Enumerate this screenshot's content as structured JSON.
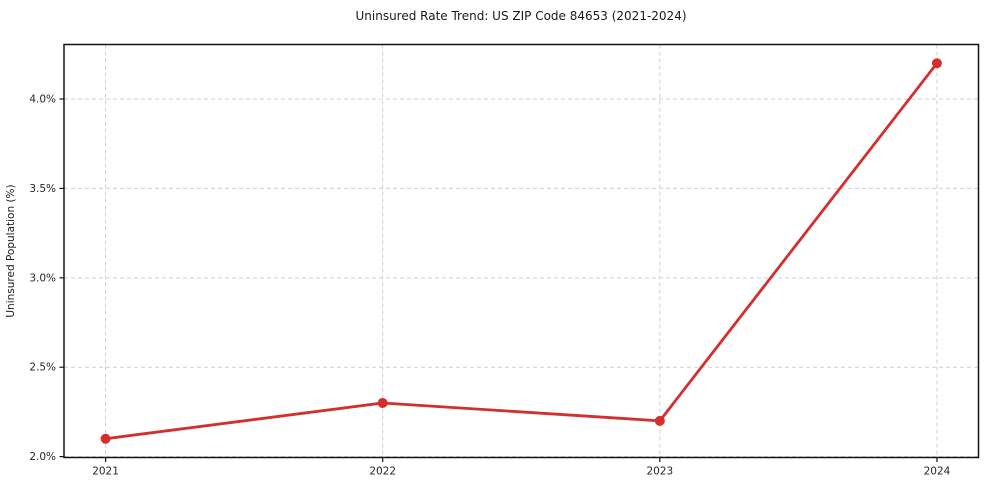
{
  "chart_data": {
    "type": "line",
    "title": "Uninsured Rate Trend: US ZIP Code 84653 (2021-2024)",
    "xlabel": "",
    "ylabel": "Uninsured Population (%)",
    "x": [
      2021,
      2022,
      2023,
      2024
    ],
    "x_tick_labels": [
      "2021",
      "2022",
      "2023",
      "2024"
    ],
    "values": [
      2.1,
      2.3,
      2.2,
      4.2
    ],
    "value_unit": "%",
    "y_ticks": [
      2.0,
      2.5,
      3.0,
      3.5,
      4.0
    ],
    "y_tick_labels": [
      "2.0%",
      "2.5%",
      "3.0%",
      "3.5%",
      "4.0%"
    ],
    "xlim": [
      2020.85,
      2024.15
    ],
    "ylim": [
      1.995,
      4.305
    ],
    "grid": true,
    "grid_style": "dashed",
    "legend": "none",
    "marker": "circle",
    "colors": {
      "line": "#d32f2f",
      "marker": "#d32f2f",
      "grid": "#cfcfcf",
      "frame": "#141414",
      "text": "#1a1a1a",
      "background": "#ffffff"
    }
  }
}
